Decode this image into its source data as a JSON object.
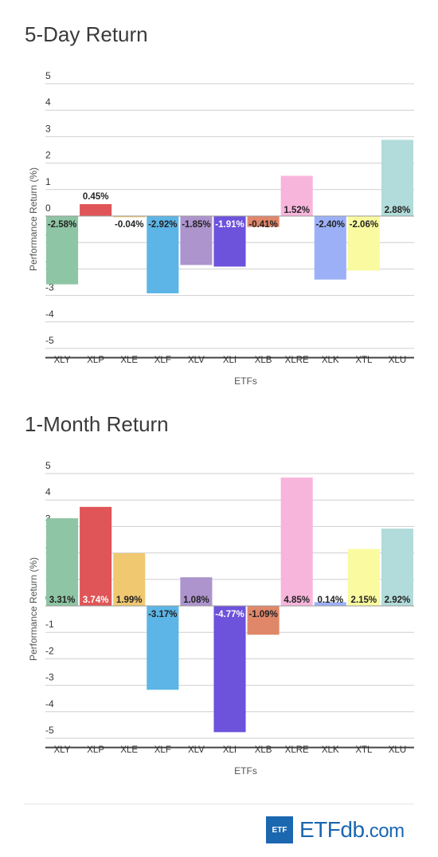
{
  "chart_data": [
    {
      "type": "bar",
      "title": "5-Day Return",
      "xlabel": "ETFs",
      "ylabel": "Performance Return (%)",
      "ylim": [
        -5,
        5
      ],
      "yticks": [
        "5",
        "4",
        "3",
        "2",
        "1",
        "0",
        "-1",
        "-2",
        "-3",
        "-4",
        "-5"
      ],
      "categories": [
        "XLY",
        "XLP",
        "XLE",
        "XLF",
        "XLV",
        "XLI",
        "XLB",
        "XLRE",
        "XLK",
        "XTL",
        "XLU"
      ],
      "values": [
        -2.58,
        0.45,
        -0.04,
        -2.92,
        -1.85,
        -1.91,
        -0.41,
        1.52,
        -2.4,
        -2.06,
        2.88
      ],
      "labels": [
        "-2.58%",
        "0.45%",
        "-0.04%",
        "-2.92%",
        "-1.85%",
        "-1.91%",
        "-0.41%",
        "1.52%",
        "-2.40%",
        "-2.06%",
        "2.88%"
      ],
      "grid": true
    },
    {
      "type": "bar",
      "title": "1-Month Return",
      "xlabel": "ETFs",
      "ylabel": "Performance Return (%)",
      "ylim": [
        -5,
        5
      ],
      "yticks": [
        "5",
        "4",
        "3",
        "2",
        "1",
        "0",
        "-1",
        "-2",
        "-3",
        "-4",
        "-5"
      ],
      "categories": [
        "XLY",
        "XLP",
        "XLE",
        "XLF",
        "XLV",
        "XLI",
        "XLB",
        "XLRE",
        "XLK",
        "XTL",
        "XLU"
      ],
      "values": [
        3.31,
        3.74,
        1.99,
        -3.17,
        1.08,
        -4.77,
        -1.09,
        4.85,
        0.14,
        2.15,
        2.92
      ],
      "labels": [
        "3.31%",
        "3.74%",
        "1.99%",
        "-3.17%",
        "1.08%",
        "-4.77%",
        "-1.09%",
        "4.85%",
        "0.14%",
        "2.15%",
        "2.92%"
      ],
      "grid": true
    }
  ],
  "colors": {
    "XLY": "#8ec5a4",
    "XLP": "#e05557",
    "XLE": "#f0c870",
    "XLF": "#5cb5e6",
    "XLV": "#ad94cd",
    "XLI": "#6d52dc",
    "XLB": "#e0876a",
    "XLRE": "#f8b5dc",
    "XLK": "#9bb0f7",
    "XTL": "#fafaa0",
    "XLU": "#b1dcdb"
  },
  "label_text_colors": {
    "chart1": [
      "#222222",
      "#222222",
      "#222222",
      "#222222",
      "#222222",
      "#ffffff",
      "#222222",
      "#222222",
      "#222222",
      "#222222",
      "#222222"
    ],
    "chart2": [
      "#222222",
      "#ffffff",
      "#222222",
      "#222222",
      "#222222",
      "#ffffff",
      "#222222",
      "#222222",
      "#222222",
      "#222222",
      "#222222"
    ]
  },
  "logo": {
    "badge": "ETF",
    "word": "ETF",
    "db": "db",
    "com": ".com"
  }
}
